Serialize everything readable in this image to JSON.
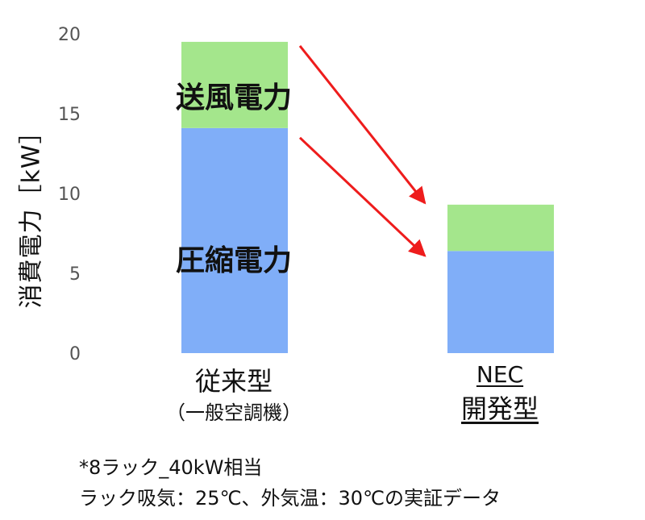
{
  "chart_data": {
    "type": "bar",
    "stacked": true,
    "ylabel": "消費電力［kW］",
    "ylim": [
      0,
      20
    ],
    "yticks": [
      0,
      5,
      10,
      15,
      20
    ],
    "categories": [
      {
        "label": "従来型",
        "sublabel": "（一般空調機）"
      },
      {
        "label": "NEC",
        "sublabel": "開発型"
      }
    ],
    "series": [
      {
        "name": "圧縮電力",
        "color": "#80aef8",
        "values": [
          14.1,
          6.4
        ]
      },
      {
        "name": "送風電力",
        "color": "#a4e68c",
        "values": [
          5.4,
          2.9
        ]
      }
    ],
    "arrow_color": "#ee1c1c",
    "grid": false,
    "legend": "none"
  },
  "notes": [
    "*8ラック_40kW相当",
    "ラック吸気：25℃、外気温：30℃の実証データ"
  ]
}
